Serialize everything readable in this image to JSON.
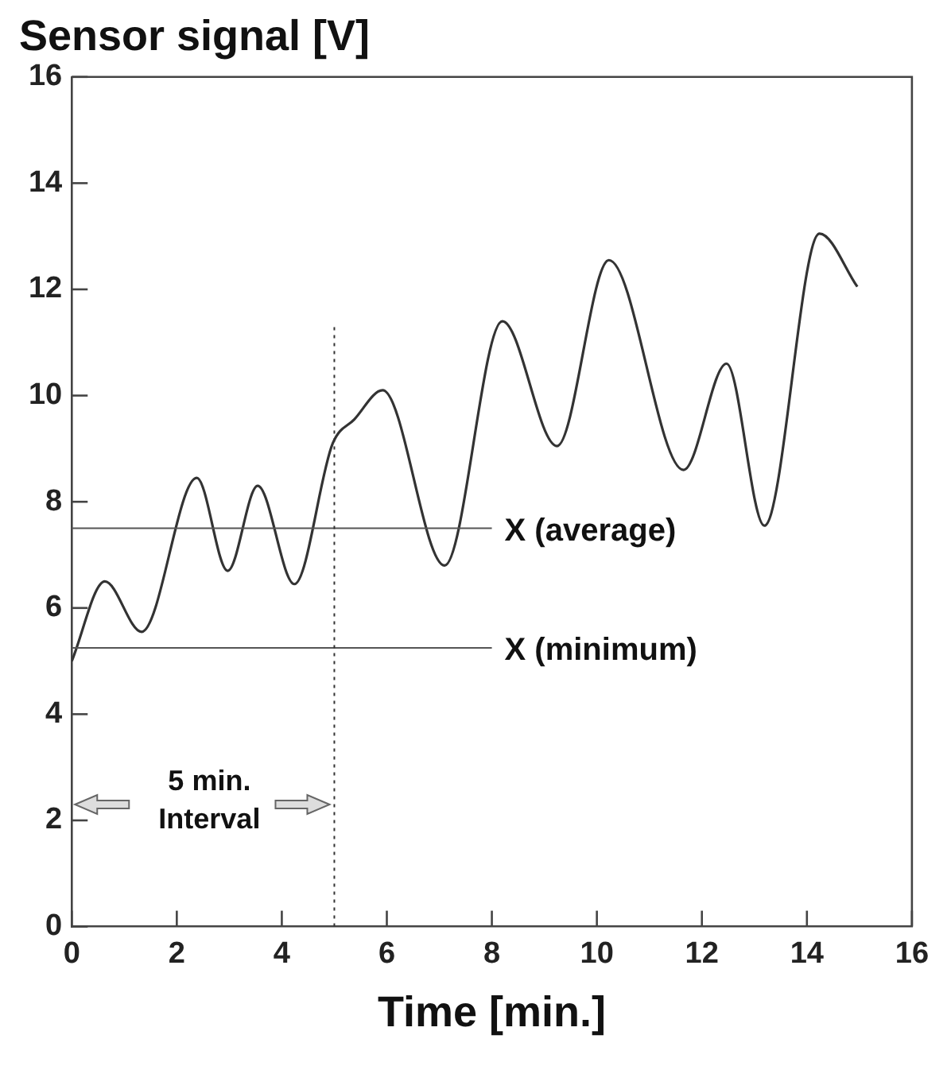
{
  "chart_data": {
    "type": "line",
    "ylabel": "Sensor signal [V]",
    "xlabel": "Time [min.]",
    "series": [
      {
        "color": "#333333",
        "x": [
          0,
          0.63,
          1.33,
          2.38,
          2.97,
          3.54,
          4.24,
          4.97,
          5.38,
          5.92,
          7.1,
          8.2,
          9.24,
          10.23,
          11.65,
          12.47,
          13.19,
          14.24,
          14.96
        ],
        "values": [
          5.0,
          6.5,
          5.55,
          8.45,
          6.7,
          8.3,
          6.45,
          9.1,
          9.55,
          10.1,
          6.8,
          11.4,
          9.05,
          12.55,
          8.6,
          10.6,
          7.55,
          13.05,
          12.05
        ]
      }
    ],
    "xlim": [
      0,
      16
    ],
    "xticks": [
      0,
      2,
      4,
      6,
      8,
      10,
      12,
      14,
      16
    ],
    "ylim": [
      0,
      16
    ],
    "yticks": [
      0,
      2,
      4,
      6,
      8,
      10,
      12,
      14,
      16
    ],
    "grid": false,
    "legend": false,
    "marker": "none",
    "line_style": "solid",
    "ref_lines": [
      {
        "axis": "y",
        "value": 7.5,
        "label": "X (average)",
        "color": "#555555"
      },
      {
        "axis": "y",
        "value": 5.25,
        "label": "X (minimum)",
        "color": "#555555"
      },
      {
        "axis": "x",
        "value": 5,
        "color": "#333333",
        "line_style": "dotted"
      }
    ],
    "annotations": [
      {
        "text": "5 min.\nInterval",
        "x": 5,
        "y": 2.3
      }
    ]
  }
}
